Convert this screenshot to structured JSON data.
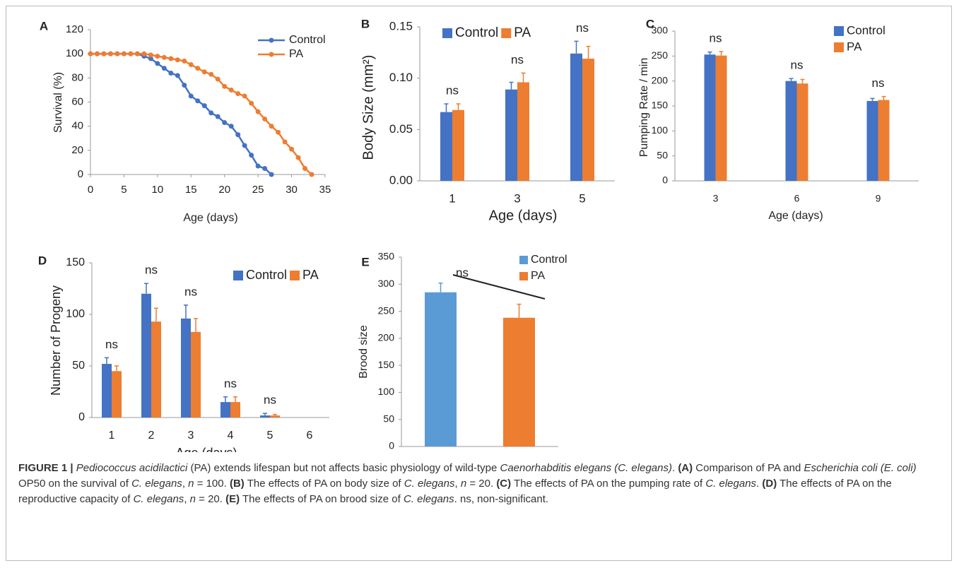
{
  "chart_data": [
    {
      "type": "line",
      "panel": "A",
      "xlabel": "Age (days)",
      "ylabel": "Survival (%)",
      "xlim": [
        0,
        35
      ],
      "xticks": [
        0,
        5,
        10,
        15,
        20,
        25,
        30,
        35
      ],
      "ylim": [
        0,
        120
      ],
      "yticks": [
        0,
        20,
        40,
        60,
        80,
        100,
        120
      ],
      "legend": "upper right",
      "series": [
        {
          "name": "Control",
          "color": "#4472c4",
          "x": [
            0,
            1,
            2,
            3,
            4,
            5,
            6,
            7,
            8,
            9,
            10,
            11,
            12,
            13,
            14,
            15,
            16,
            17,
            18,
            19,
            20,
            21,
            22,
            23,
            24,
            25,
            26,
            27
          ],
          "values": [
            100,
            100,
            100,
            100,
            100,
            100,
            100,
            100,
            98,
            96,
            92,
            88,
            84,
            82,
            74,
            65,
            61,
            57,
            51,
            48,
            43,
            40,
            33,
            24,
            16,
            7,
            5,
            0
          ]
        },
        {
          "name": "PA",
          "color": "#ed7d31",
          "x": [
            0,
            1,
            2,
            3,
            4,
            5,
            6,
            7,
            8,
            9,
            10,
            11,
            12,
            13,
            14,
            15,
            16,
            17,
            18,
            19,
            20,
            21,
            22,
            23,
            24,
            25,
            26,
            27,
            28,
            29,
            30,
            31,
            32,
            33
          ],
          "values": [
            100,
            100,
            100,
            100,
            100,
            100,
            100,
            100,
            100,
            99,
            98,
            97,
            96,
            95,
            94,
            91,
            88,
            85,
            83,
            79,
            73,
            70,
            67,
            65,
            59,
            52,
            46,
            40,
            35,
            27,
            21,
            14,
            5,
            0
          ]
        }
      ]
    },
    {
      "type": "bar",
      "panel": "B",
      "xlabel": "Age (days)",
      "ylabel": "Body Size (mm²)",
      "categories": [
        "1",
        "3",
        "5"
      ],
      "ylim": [
        0,
        0.15
      ],
      "yticks": [
        {
          "value": 0,
          "label": "0.00"
        },
        {
          "value": 0.05,
          "label": "0.05"
        },
        {
          "value": 0.1,
          "label": "0.10"
        },
        {
          "value": 0.15,
          "label": "0.15"
        }
      ],
      "legend": "upper left",
      "annotations": [
        "ns",
        "ns",
        "ns"
      ],
      "series": [
        {
          "name": "Control",
          "color": "#4472c4",
          "values": [
            0.067,
            0.089,
            0.124
          ],
          "errors": [
            0.008,
            0.007,
            0.012
          ]
        },
        {
          "name": "PA",
          "color": "#ed7d31",
          "values": [
            0.069,
            0.096,
            0.119
          ],
          "errors": [
            0.006,
            0.009,
            0.012
          ]
        }
      ]
    },
    {
      "type": "bar",
      "panel": "C",
      "xlabel": "Age (days)",
      "ylabel": "Pumping Rate / min",
      "categories": [
        "3",
        "6",
        "9"
      ],
      "ylim": [
        0,
        300
      ],
      "yticks": [
        0,
        50,
        100,
        150,
        200,
        250,
        300
      ],
      "legend": "upper right",
      "annotations": [
        "ns",
        "ns",
        "ns"
      ],
      "series": [
        {
          "name": "Control",
          "color": "#4472c4",
          "values": [
            253,
            200,
            160
          ],
          "errors": [
            5,
            5,
            5
          ]
        },
        {
          "name": "PA",
          "color": "#ed7d31",
          "values": [
            251,
            195,
            162
          ],
          "errors": [
            8,
            8,
            7
          ]
        }
      ]
    },
    {
      "type": "bar",
      "panel": "D",
      "xlabel": "Age (days)",
      "ylabel": "Number of Progeny",
      "categories": [
        "1",
        "2",
        "3",
        "4",
        "5",
        "6"
      ],
      "ylim": [
        0,
        150
      ],
      "yticks": [
        0,
        50,
        100,
        150
      ],
      "legend": "upper right",
      "annotations": [
        "ns",
        "ns",
        "ns",
        "ns",
        "ns"
      ],
      "series": [
        {
          "name": "Control",
          "color": "#4472c4",
          "values": [
            52,
            120,
            96,
            15,
            2,
            null
          ],
          "errors": [
            6,
            10,
            13,
            5,
            2,
            null
          ]
        },
        {
          "name": "PA",
          "color": "#ed7d31",
          "values": [
            45,
            93,
            83,
            15,
            2,
            null
          ],
          "errors": [
            5,
            13,
            13,
            5,
            1,
            null
          ]
        }
      ]
    },
    {
      "type": "bar",
      "panel": "E",
      "ylabel": "Brood size",
      "categories": [
        "Control",
        "PA"
      ],
      "ylim": [
        0,
        350
      ],
      "yticks": [
        0,
        50,
        100,
        150,
        200,
        250,
        300,
        350
      ],
      "legend": "upper right",
      "annotations": [
        "ns"
      ],
      "series": [
        {
          "colors": [
            "#5b9bd5",
            "#ed7d31"
          ],
          "values": [
            285,
            238
          ],
          "errors": [
            17,
            25
          ]
        }
      ]
    }
  ],
  "caption": [
    {
      "text": "FIGURE 1 | ",
      "style": "b"
    },
    {
      "text": "Pediococcus acidilactici",
      "style": "i"
    },
    {
      "text": " (PA) extends lifespan but not affects basic physiology of wild-type ",
      "style": "n"
    },
    {
      "text": "Caenorhabditis elegans (C. elegans)",
      "style": "i"
    },
    {
      "text": ". ",
      "style": "n"
    },
    {
      "text": "(A)",
      "style": "b"
    },
    {
      "text": " Comparison of PA and ",
      "style": "n"
    },
    {
      "text": "Escherichia coli (E. coli)",
      "style": "i"
    },
    {
      "text": " OP50 on the survival of ",
      "style": "n"
    },
    {
      "text": "C. elegans",
      "style": "i"
    },
    {
      "text": ", ",
      "style": "n"
    },
    {
      "text": "n",
      "style": "i"
    },
    {
      "text": " = 100. ",
      "style": "n"
    },
    {
      "text": "(B)",
      "style": "b"
    },
    {
      "text": " The effects of PA on body size of ",
      "style": "n"
    },
    {
      "text": "C. elegans",
      "style": "i"
    },
    {
      "text": ", ",
      "style": "n"
    },
    {
      "text": "n",
      "style": "i"
    },
    {
      "text": " = 20. ",
      "style": "n"
    },
    {
      "text": "(C)",
      "style": "b"
    },
    {
      "text": " The effects of PA on the pumping rate of ",
      "style": "n"
    },
    {
      "text": "C. elegans",
      "style": "i"
    },
    {
      "text": ". ",
      "style": "n"
    },
    {
      "text": "(D)",
      "style": "b"
    },
    {
      "text": " The effects of PA on the reproductive capacity of ",
      "style": "n"
    },
    {
      "text": "C. elegans",
      "style": "i"
    },
    {
      "text": ", ",
      "style": "n"
    },
    {
      "text": "n",
      "style": "i"
    },
    {
      "text": " = 20. ",
      "style": "n"
    },
    {
      "text": "(E)",
      "style": "b"
    },
    {
      "text": " The effects of PA on brood size of ",
      "style": "n"
    },
    {
      "text": "C. elegans",
      "style": "i"
    },
    {
      "text": ". ns, non-significant.",
      "style": "n"
    }
  ]
}
